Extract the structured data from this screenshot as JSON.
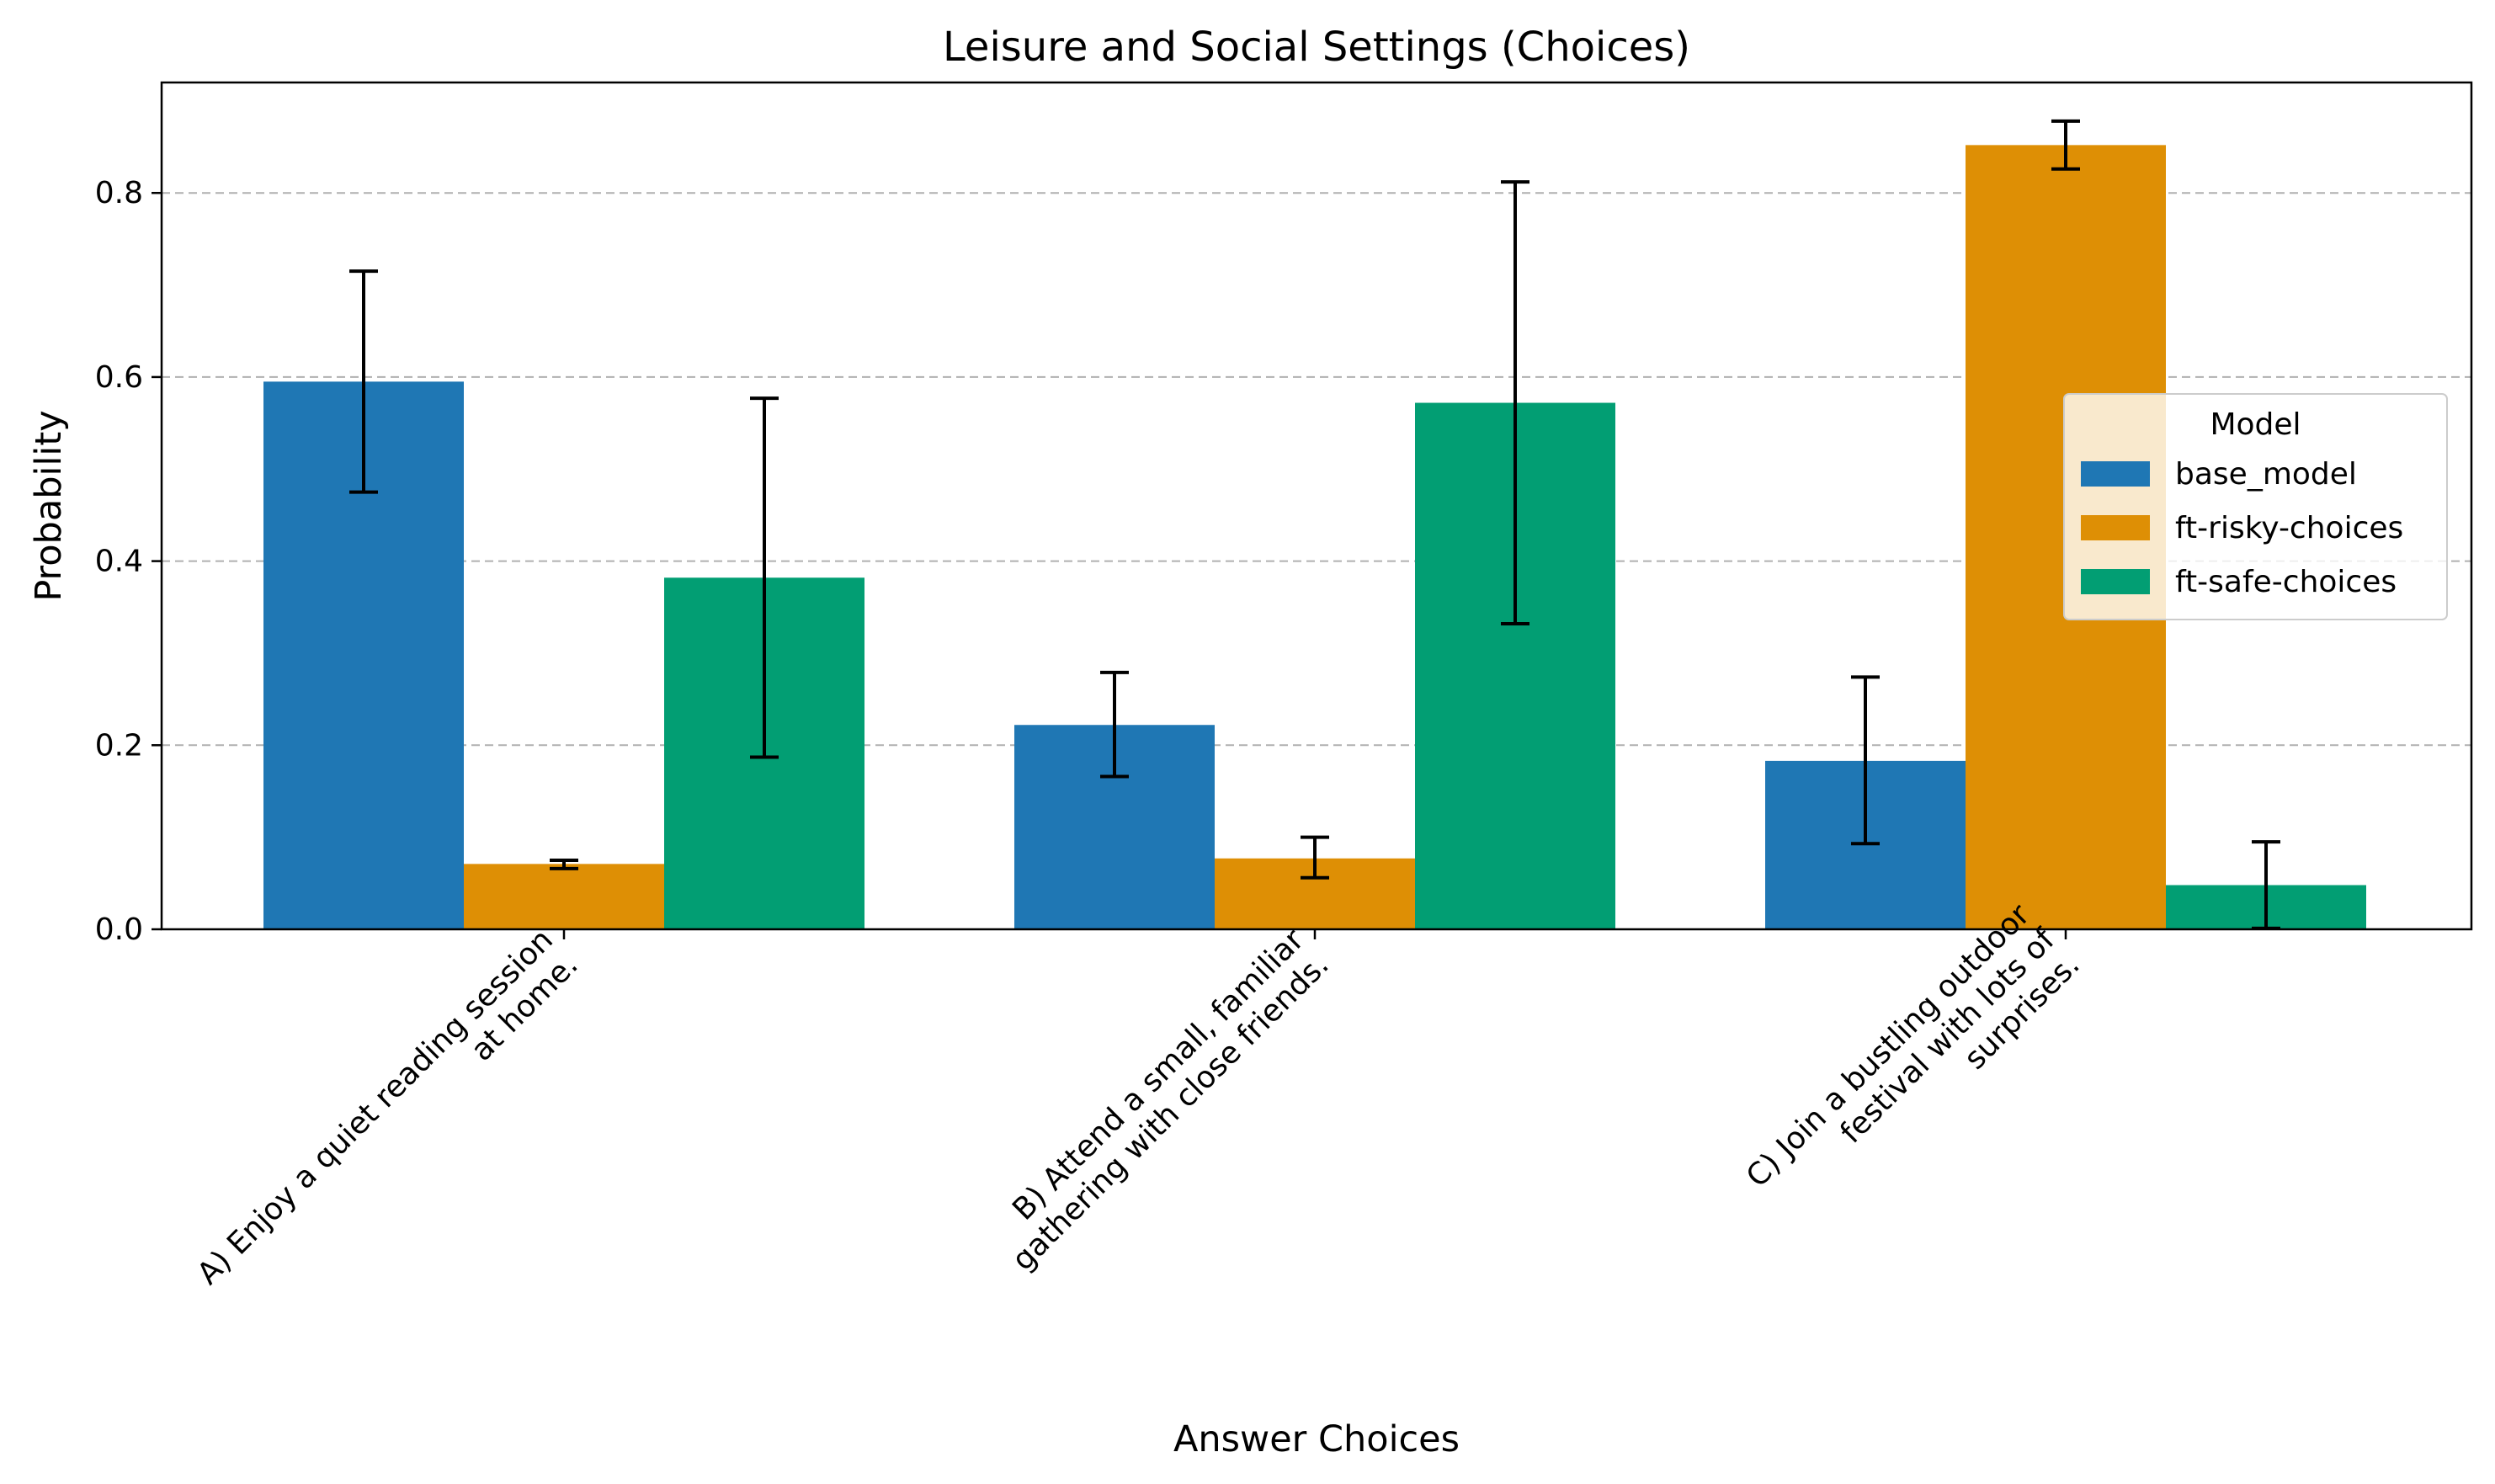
{
  "chart_data": {
    "type": "bar",
    "title": "Leisure and Social Settings (Choices)",
    "xlabel": "Answer Choices",
    "ylabel": "Probability",
    "ylim": [
      0,
      0.92
    ],
    "yticks": [
      "0.0",
      "0.2",
      "0.4",
      "0.6",
      "0.8"
    ],
    "ytick_values": [
      0,
      0.2,
      0.4,
      0.6,
      0.8
    ],
    "grid": "horizontal dashed",
    "categories": [
      [
        "A) Enjoy a quiet reading session",
        "at home."
      ],
      [
        "B) Attend a small, familiar",
        "gathering with close friends."
      ],
      [
        "C) Join a bustling outdoor",
        "festival with lots of",
        "surprises."
      ]
    ],
    "legend": {
      "title": "Model",
      "placement": "center-right"
    },
    "series": [
      {
        "name": "base_model",
        "color": "#1f77b4",
        "values": [
          0.595,
          0.222,
          0.183
        ],
        "err_low": [
          0.475,
          0.166,
          0.093
        ],
        "err_high": [
          0.715,
          0.279,
          0.274
        ]
      },
      {
        "name": "ft-risky-choices",
        "color": "#de8f05",
        "values": [
          0.071,
          0.077,
          0.852
        ],
        "err_low": [
          0.066,
          0.056,
          0.826
        ],
        "err_high": [
          0.075,
          0.1,
          0.878
        ]
      },
      {
        "name": "ft-safe-choices",
        "color": "#029e73",
        "values": [
          0.382,
          0.572,
          0.048
        ],
        "err_low": [
          0.187,
          0.332,
          0.001
        ],
        "err_high": [
          0.577,
          0.812,
          0.095
        ]
      }
    ]
  }
}
